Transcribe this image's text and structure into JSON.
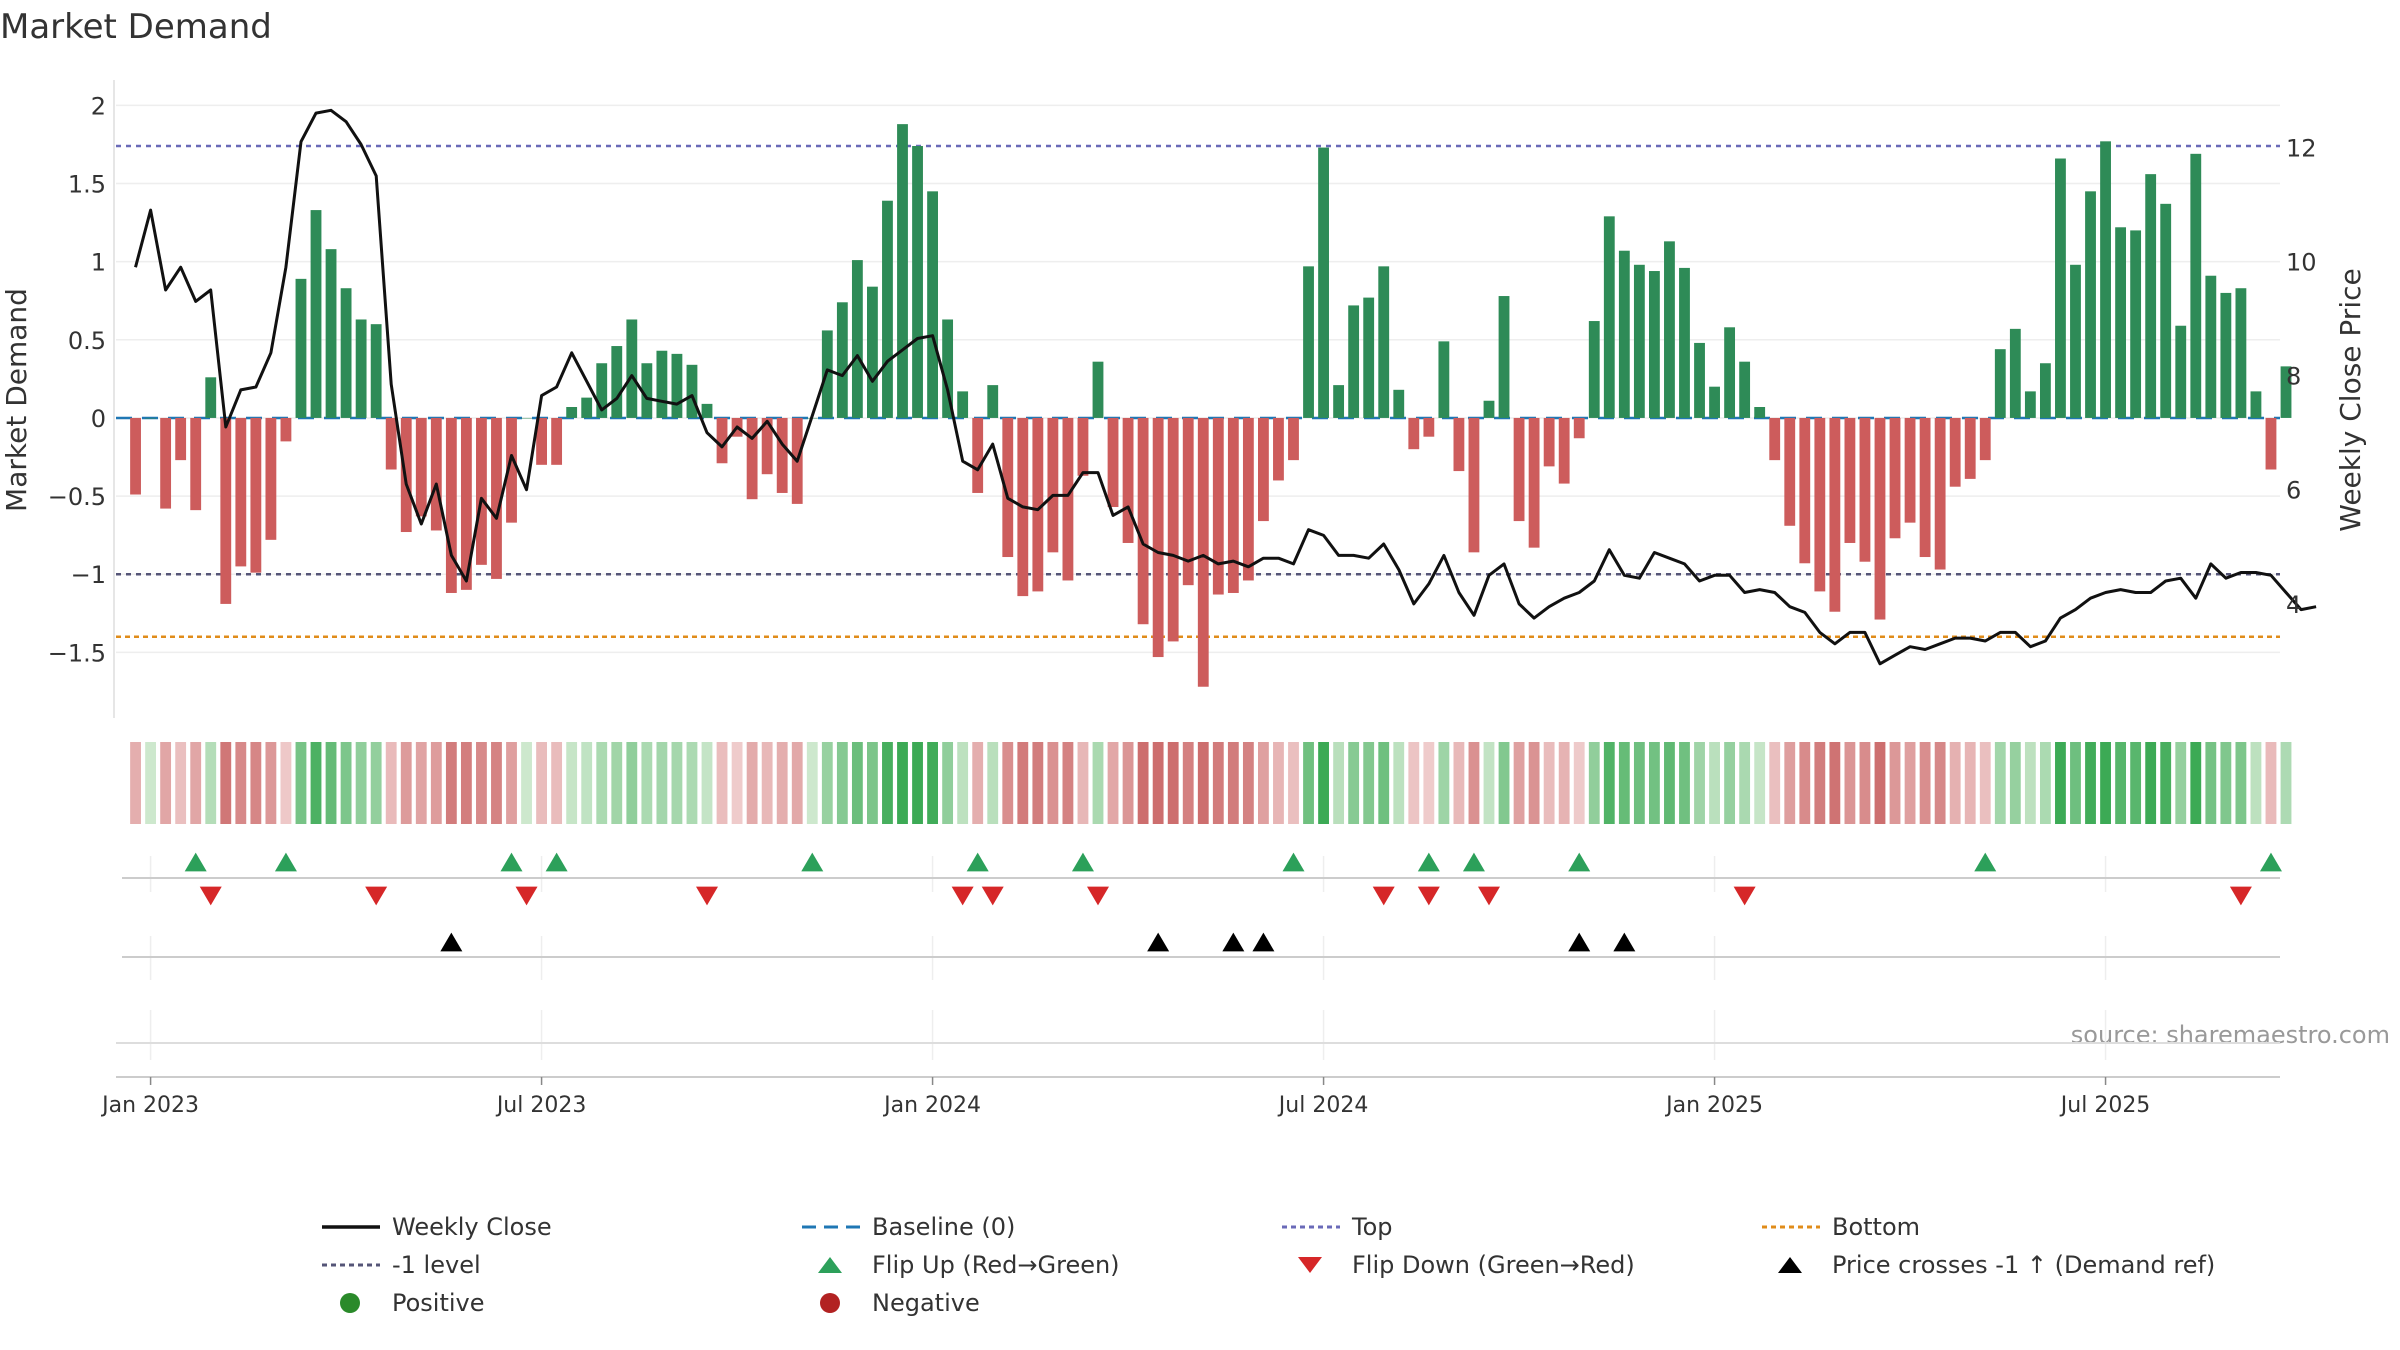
{
  "chart_data": {
    "type": "bar+line",
    "title": "Market Demand",
    "ylabel_left": "Market Demand",
    "ylabel_right": "Weekly Close Price",
    "left_ticks": [
      {
        "v": 2,
        "label": "2"
      },
      {
        "v": 1.5,
        "label": "1.5"
      },
      {
        "v": 1,
        "label": "1"
      },
      {
        "v": 0.5,
        "label": "0.5"
      },
      {
        "v": 0,
        "label": "0"
      },
      {
        "v": -0.5,
        "label": "−0.5"
      },
      {
        "v": -1,
        "label": "−1"
      },
      {
        "v": -1.5,
        "label": "−1.5"
      }
    ],
    "right_ticks": [
      {
        "v": 12,
        "label": "12"
      },
      {
        "v": 10,
        "label": "10"
      },
      {
        "v": 8,
        "label": "8"
      },
      {
        "v": 6,
        "label": "6"
      },
      {
        "v": 4,
        "label": "4"
      }
    ],
    "left_ylim": [
      -1.92,
      2.06
    ],
    "right_ylim": [
      2.0,
      12.9
    ],
    "x_ticks": [
      {
        "week": 1,
        "label": "Jan 2023"
      },
      {
        "week": 27,
        "label": "Jul 2023"
      },
      {
        "week": 53,
        "label": "Jan 2024"
      },
      {
        "week": 79,
        "label": "Jul 2024"
      },
      {
        "week": 105,
        "label": "Jan 2025"
      },
      {
        "week": 131,
        "label": "Jul 2025"
      }
    ],
    "x_range": [
      -1.3,
      142.6
    ],
    "levels": {
      "top": 1.74,
      "minus_one": -1.0,
      "bottom": -1.4,
      "baseline": 0
    },
    "demand": [
      -0.49,
      0,
      -0.58,
      -0.27,
      -0.59,
      0.26,
      -1.19,
      -0.95,
      -0.99,
      -0.78,
      -0.15,
      0.89,
      1.33,
      1.08,
      0.83,
      0.63,
      0.6,
      -0.33,
      -0.73,
      -0.63,
      -0.72,
      -1.12,
      -1.1,
      -0.94,
      -1.03,
      -0.67,
      0,
      -0.3,
      -0.3,
      0.07,
      0.13,
      0.35,
      0.46,
      0.63,
      0.35,
      0.43,
      0.41,
      0.34,
      0.09,
      -0.29,
      -0.12,
      -0.52,
      -0.36,
      -0.48,
      -0.55,
      0,
      0.56,
      0.74,
      1.01,
      0.84,
      1.39,
      1.88,
      1.74,
      1.45,
      0.63,
      0.17,
      -0.48,
      0.21,
      -0.89,
      -1.14,
      -1.11,
      -0.86,
      -1.04,
      -0.37,
      0.36,
      -0.57,
      -0.8,
      -1.32,
      -1.53,
      -1.43,
      -1.07,
      -1.72,
      -1.13,
      -1.12,
      -1.04,
      -0.66,
      -0.4,
      -0.27,
      0.97,
      1.73,
      0.21,
      0.72,
      0.77,
      0.97,
      0.18,
      -0.2,
      -0.12,
      0.49,
      -0.34,
      -0.86,
      0.11,
      0.78,
      -0.66,
      -0.83,
      -0.31,
      -0.42,
      -0.13,
      0.62,
      1.29,
      1.07,
      0.98,
      0.94,
      1.13,
      0.96,
      0.48,
      0.2,
      0.58,
      0.36,
      0.07,
      -0.27,
      -0.69,
      -0.93,
      -1.11,
      -1.24,
      -0.8,
      -0.92,
      -1.29,
      -0.77,
      -0.67,
      -0.89,
      -0.97,
      -0.44,
      -0.39,
      -0.27,
      0.44,
      0.57,
      0.17,
      0.35,
      1.66,
      0.98,
      1.45,
      1.77,
      1.22,
      1.2,
      1.56,
      1.37,
      0.59,
      1.69,
      0.91,
      0.8,
      0.83,
      0.17,
      -0.33,
      0.33
    ],
    "price": [
      9.9,
      10.9,
      9.5,
      9.9,
      9.3,
      9.5,
      7.1,
      7.75,
      7.8,
      8.4,
      9.9,
      12.1,
      12.6,
      12.65,
      12.45,
      12.05,
      11.5,
      7.85,
      6.1,
      5.4,
      6.1,
      4.85,
      4.4,
      5.85,
      5.5,
      6.6,
      6.0,
      7.65,
      7.8,
      8.4,
      7.9,
      7.4,
      7.6,
      8.0,
      7.6,
      7.55,
      7.5,
      7.65,
      7.0,
      6.75,
      7.1,
      6.9,
      7.2,
      6.8,
      6.5,
      7.3,
      8.1,
      8.0,
      8.35,
      7.9,
      8.25,
      8.45,
      8.65,
      8.7,
      7.75,
      6.5,
      6.35,
      6.8,
      5.85,
      5.7,
      5.65,
      5.9,
      5.9,
      6.3,
      6.3,
      5.55,
      5.7,
      5.05,
      4.9,
      4.85,
      4.75,
      4.85,
      4.7,
      4.75,
      4.65,
      4.8,
      4.8,
      4.7,
      5.3,
      5.2,
      4.85,
      4.85,
      4.8,
      5.05,
      4.6,
      4.0,
      4.35,
      4.85,
      4.2,
      3.8,
      4.5,
      4.7,
      4.0,
      3.75,
      3.95,
      4.1,
      4.2,
      4.4,
      4.95,
      4.5,
      4.45,
      4.9,
      4.8,
      4.7,
      4.4,
      4.5,
      4.5,
      4.2,
      4.25,
      4.2,
      3.95,
      3.85,
      3.5,
      3.3,
      3.5,
      3.5,
      2.95,
      3.1,
      3.25,
      3.2,
      3.3,
      3.4,
      3.4,
      3.35,
      3.5,
      3.5,
      3.25,
      3.35,
      3.75,
      3.9,
      4.1,
      4.2,
      4.25,
      4.2,
      4.2,
      4.4,
      4.45,
      4.1,
      4.7,
      4.45,
      4.55,
      4.55,
      4.5,
      4.2,
      3.9,
      3.95
    ],
    "flip_up_weeks": [
      4,
      10,
      25,
      28,
      45,
      56,
      63,
      77,
      86,
      89,
      96,
      123,
      142
    ],
    "flip_down_weeks": [
      5,
      16,
      26,
      38,
      55,
      57,
      64,
      83,
      86,
      90,
      107,
      140
    ],
    "price_cross_weeks": [
      21,
      68,
      73,
      75,
      96,
      99
    ],
    "source": "source: sharemaestro.com",
    "legend": [
      {
        "label": "Weekly Close",
        "symbol": "line",
        "color": "#111111"
      },
      {
        "label": "Baseline (0)",
        "symbol": "dash",
        "color": "#1f77b4"
      },
      {
        "label": "Top",
        "symbol": "dot",
        "color": "#6a6ab8"
      },
      {
        "label": "Bottom",
        "symbol": "dot",
        "color": "#e08c1a"
      },
      {
        "label": "-1 level",
        "symbol": "dot",
        "color": "#555577"
      },
      {
        "label": "Flip Up (Red→Green)",
        "symbol": "tri-up",
        "color": "#2ca05a"
      },
      {
        "label": "Flip Down (Green→Red)",
        "symbol": "tri-down",
        "color": "#d62728"
      },
      {
        "label": "Price crosses -1 ↑ (Demand ref)",
        "symbol": "tri-up",
        "color": "#000000"
      },
      {
        "label": "Positive",
        "symbol": "circle",
        "color": "#2a8a2a"
      },
      {
        "label": "Negative",
        "symbol": "circle",
        "color": "#b22222"
      }
    ],
    "colors": {
      "positive": "#2e8b57",
      "negative": "#cd5c5c",
      "price": "#111111",
      "top": "#6a6ab8",
      "bottom": "#e08c1a",
      "minus_one": "#555577",
      "baseline": "#1f77b4",
      "flip_up": "#2ca05a",
      "flip_down": "#d62728",
      "cross": "#000000"
    }
  }
}
